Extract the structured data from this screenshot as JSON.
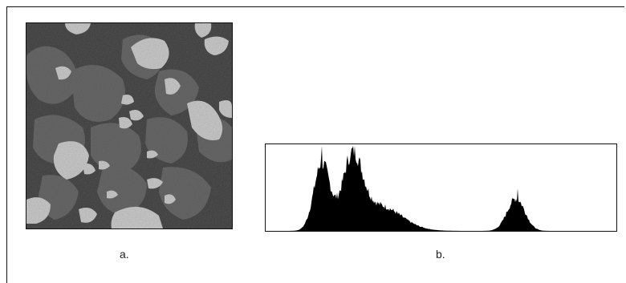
{
  "figure": {
    "caption_a": "a.",
    "caption_b": "b."
  },
  "image_panel": {
    "icon": "grayscale-micrograph-image"
  },
  "histogram_panel": {
    "icon": "trimodal-intensity-histogram"
  },
  "colors": {
    "frame": "#111111",
    "micro_background": "#3c3c3c",
    "micro_mid": "#5a5a5a",
    "micro_light": "#cfcfcf",
    "bars": "#000000"
  }
}
